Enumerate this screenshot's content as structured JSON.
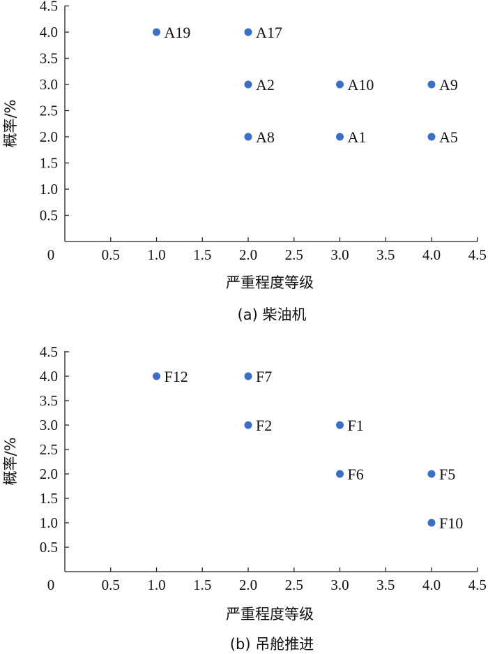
{
  "chart_data": [
    {
      "type": "scatter",
      "caption": "(a)  柴油机",
      "xlabel": "严重程度等级",
      "ylabel": "概率/%",
      "xlim": [
        0,
        4.5
      ],
      "ylim": [
        0,
        4.5
      ],
      "xticks": [
        "0",
        "0.5",
        "1.0",
        "1.5",
        "2.0",
        "2.5",
        "3.0",
        "3.5",
        "4.0",
        "4.5"
      ],
      "yticks": [
        "0.5",
        "1.0",
        "1.5",
        "2.0",
        "2.5",
        "3.0",
        "3.5",
        "4.0",
        "4.5"
      ],
      "marker_color": "#3a6fc9",
      "points": [
        {
          "label": "A19",
          "x": 1.0,
          "y": 4.0
        },
        {
          "label": "A17",
          "x": 2.0,
          "y": 4.0
        },
        {
          "label": "A2",
          "x": 2.0,
          "y": 3.0
        },
        {
          "label": "A10",
          "x": 3.0,
          "y": 3.0
        },
        {
          "label": "A9",
          "x": 4.0,
          "y": 3.0
        },
        {
          "label": "A8",
          "x": 2.0,
          "y": 2.0
        },
        {
          "label": "A1",
          "x": 3.0,
          "y": 2.0
        },
        {
          "label": "A5",
          "x": 4.0,
          "y": 2.0
        }
      ]
    },
    {
      "type": "scatter",
      "caption": "(b)  吊舱推进",
      "xlabel": "严重程度等级",
      "ylabel": "概率/%",
      "xlim": [
        0,
        4.5
      ],
      "ylim": [
        0,
        4.5
      ],
      "xticks": [
        "0",
        "0.5",
        "1.0",
        "1.5",
        "2.0",
        "2.5",
        "3.0",
        "3.5",
        "4.0",
        "4.5"
      ],
      "yticks": [
        "0.5",
        "1.0",
        "1.5",
        "2.0",
        "2.5",
        "3.0",
        "3.5",
        "4.0",
        "4.5"
      ],
      "marker_color": "#3a6fc9",
      "points": [
        {
          "label": "F12",
          "x": 1.0,
          "y": 4.0
        },
        {
          "label": "F7",
          "x": 2.0,
          "y": 4.0
        },
        {
          "label": "F2",
          "x": 2.0,
          "y": 3.0
        },
        {
          "label": "F1",
          "x": 3.0,
          "y": 3.0
        },
        {
          "label": "F6",
          "x": 3.0,
          "y": 2.0
        },
        {
          "label": "F5",
          "x": 4.0,
          "y": 2.0
        },
        {
          "label": "F10",
          "x": 4.0,
          "y": 1.0
        }
      ]
    }
  ]
}
